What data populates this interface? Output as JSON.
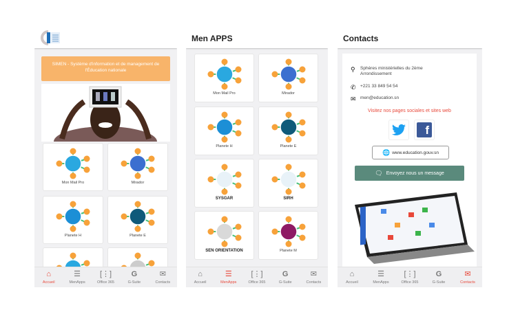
{
  "screens": [
    {
      "header": {
        "logo": "simen-logo"
      },
      "banner": "SIMEN - Système d'information et de management de l'Éducation nationale",
      "apps": [
        {
          "label": "Mon Mail Pro",
          "color": "#2aa8e0"
        },
        {
          "label": "Mirador",
          "color": "#3b6fd0"
        },
        {
          "label": "Planete H",
          "color": "#1c8fd6"
        },
        {
          "label": "Planete E",
          "color": "#0f5a7a"
        },
        {
          "label": "",
          "color": "#2aa8e0"
        },
        {
          "label": "",
          "color": "#cccccc"
        }
      ],
      "active_nav": 0
    },
    {
      "header": {
        "title": "Men APPS"
      },
      "apps": [
        {
          "label": "Mon Mail Pro",
          "color": "#2aa8e0"
        },
        {
          "label": "Mirador",
          "color": "#3b6fd0"
        },
        {
          "label": "Planete H",
          "color": "#1c8fd6"
        },
        {
          "label": "Planete E",
          "color": "#0f5a7a"
        },
        {
          "label": "SYSGAR",
          "color": "#e8f2f8",
          "bold": true
        },
        {
          "label": "SIRH",
          "color": "#e8f2f8",
          "bold": true
        },
        {
          "label": "SEN ORIENTATION",
          "color": "#d9d9d9",
          "bold": true
        },
        {
          "label": "Planete M",
          "color": "#8e1a64"
        }
      ],
      "active_nav": 1
    },
    {
      "header": {
        "title": "Contacts"
      },
      "address": "Sphères ministérielles du 2ème Arrondissement",
      "phone": "+221 33 849 54 54",
      "email": "men@education.sn",
      "social_heading": "Visitez nos pages sociales et sites web",
      "website": "www.education.gouv.sn",
      "message_button": "Envoyez nous un message",
      "active_nav": 4
    }
  ],
  "nav": [
    {
      "label": "Accueil",
      "icon": "home-icon"
    },
    {
      "label": "MenApps",
      "icon": "layers-icon"
    },
    {
      "label": "Office 365",
      "icon": "office-icon"
    },
    {
      "label": "G-Suite",
      "icon": "google-icon"
    },
    {
      "label": "Contacts",
      "icon": "mail-icon"
    }
  ],
  "colors": {
    "accent": "#e8483a",
    "orange": "#f7a23a",
    "banner": "#f8b46a",
    "message_button": "#5a8a7c",
    "twitter": "#1da1f2",
    "facebook": "#3b5998"
  }
}
